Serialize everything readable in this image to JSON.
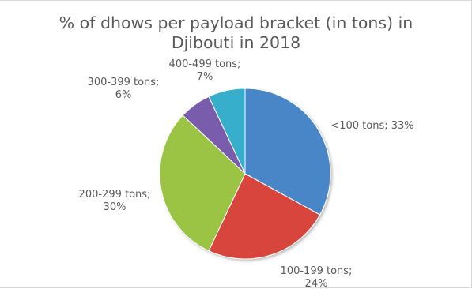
{
  "chart_data": {
    "type": "pie",
    "title": "% of dhows per payload bracket (in tons) in\nDjibouti in 2018",
    "slices": [
      {
        "category": "<100 tons",
        "value": 33,
        "label_lines": [
          "<100 tons; 33%"
        ],
        "color": "#4a86c8"
      },
      {
        "category": "100-199 tons",
        "value": 24,
        "label_lines": [
          "100-199 tons;",
          "24%"
        ],
        "color": "#d7453c"
      },
      {
        "category": "200-299 tons",
        "value": 30,
        "label_lines": [
          "200-299 tons;",
          "30%"
        ],
        "color": "#9bc444"
      },
      {
        "category": "300-399 tons",
        "value": 6,
        "label_lines": [
          "300-399 tons;",
          "6%"
        ],
        "color": "#7a5bac"
      },
      {
        "category": "400-499 tons",
        "value": 7,
        "label_lines": [
          "400-499 tons;",
          "7%"
        ],
        "color": "#39aecd"
      }
    ],
    "legend": "none"
  }
}
